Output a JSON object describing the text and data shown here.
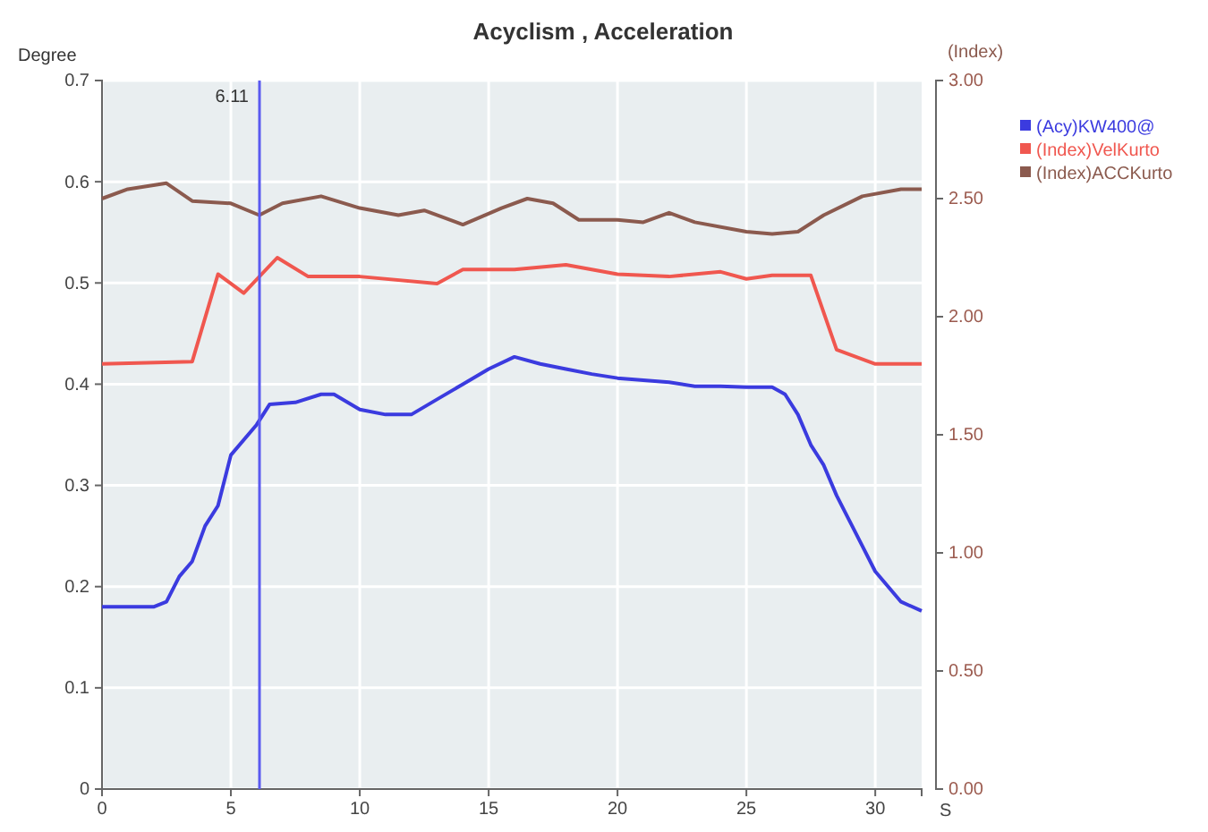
{
  "chart_data": {
    "type": "line",
    "title": "Acyclism , Acceleration",
    "ylabel": "Degree",
    "y2label": "(Index)",
    "xlabel": "S",
    "xlim": [
      0,
      31.8
    ],
    "xticks": [
      0,
      5,
      10,
      15,
      20,
      25,
      30
    ],
    "ylim": [
      0,
      0.7
    ],
    "yticks": [
      0,
      0.1,
      0.2,
      0.3,
      0.4,
      0.5,
      0.6,
      0.7
    ],
    "y2lim": [
      0,
      3
    ],
    "y2ticks": [
      {
        "value": 0,
        "label": "0.00"
      },
      {
        "value": 0.5,
        "label": "0.50"
      },
      {
        "value": 1,
        "label": "1.00"
      },
      {
        "value": 1.5,
        "label": "1.50"
      },
      {
        "value": 2,
        "label": "2.00"
      },
      {
        "value": 2.5,
        "label": "2.50"
      },
      {
        "value": 3,
        "label": "3.00"
      }
    ],
    "grid": true,
    "legend": "top right",
    "marker": "none",
    "line_style": "solid",
    "ref_lines": [
      {
        "axis": "x",
        "value": 6.11,
        "label": "6.11",
        "color": "#5a5af0"
      }
    ],
    "series": [
      {
        "name": "(Acy)KW400@",
        "color": "#3b3bdf",
        "x": [
          0,
          2,
          2.5,
          3,
          3.5,
          4,
          4.5,
          5,
          6,
          6.5,
          7.5,
          8.5,
          9,
          10,
          11,
          12,
          13,
          14,
          15,
          16,
          17,
          18,
          19,
          20,
          21,
          22,
          23,
          24,
          25,
          26,
          26.5,
          27,
          27.5,
          28,
          28.5,
          29,
          29.5,
          30,
          30.5,
          31,
          31.8
        ],
        "values": [
          0.18,
          0.18,
          0.185,
          0.21,
          0.225,
          0.26,
          0.28,
          0.33,
          0.36,
          0.38,
          0.382,
          0.39,
          0.39,
          0.375,
          0.37,
          0.37,
          0.385,
          0.4,
          0.415,
          0.427,
          0.42,
          0.415,
          0.41,
          0.406,
          0.404,
          0.402,
          0.398,
          0.398,
          0.397,
          0.397,
          0.39,
          0.37,
          0.34,
          0.32,
          0.29,
          0.265,
          0.24,
          0.215,
          0.2,
          0.185,
          0.176
        ]
      },
      {
        "name": "(Index)VelKurto",
        "color": "#f0574f",
        "axis": "y2",
        "x": [
          0,
          3.5,
          4.5,
          5.5,
          6.8,
          8,
          10,
          13,
          14,
          16,
          18,
          20,
          22,
          24,
          25,
          26,
          27.5,
          28.5,
          30,
          31.8
        ],
        "values": [
          1.8,
          1.81,
          2.18,
          2.1,
          2.25,
          2.17,
          2.17,
          2.14,
          2.2,
          2.2,
          2.22,
          2.18,
          2.17,
          2.19,
          2.16,
          2.175,
          2.175,
          1.86,
          1.8,
          1.8
        ]
      },
      {
        "name": "(Index)ACCKurto",
        "color": "#8b5a4e",
        "axis": "y2",
        "x": [
          0,
          1,
          2.5,
          3.5,
          5,
          6.1,
          7,
          8.5,
          10,
          11.5,
          12.5,
          14,
          15.5,
          16.5,
          17.5,
          18.5,
          20,
          21,
          22,
          23,
          25,
          26,
          27,
          28,
          29.5,
          31,
          31.8
        ],
        "values": [
          2.5,
          2.54,
          2.565,
          2.49,
          2.48,
          2.43,
          2.48,
          2.51,
          2.46,
          2.43,
          2.45,
          2.39,
          2.46,
          2.5,
          2.48,
          2.41,
          2.41,
          2.4,
          2.44,
          2.4,
          2.36,
          2.35,
          2.36,
          2.43,
          2.51,
          2.54,
          2.54
        ]
      }
    ]
  }
}
